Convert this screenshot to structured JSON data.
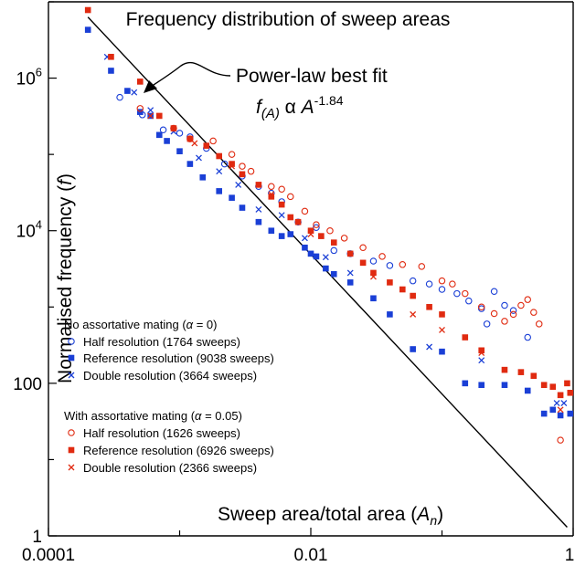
{
  "chart_data": {
    "type": "scatter",
    "title": "Frequency distribution of sweep areas",
    "xlabel_main": "Sweep area/total area (",
    "xlabel_var": "A",
    "xlabel_sub": "n",
    "xlabel_close": ")",
    "ylabel_main": "Normalised frequency (",
    "ylabel_var": "f",
    "ylabel_close": ")",
    "x_scale": "log",
    "y_scale": "log",
    "xlim": [
      0.0001,
      1
    ],
    "ylim": [
      1,
      10000000
    ],
    "x_ticks": [
      {
        "value": 0.0001,
        "label": "0.0001"
      },
      {
        "value": 0.01,
        "label": "0.01"
      },
      {
        "value": 1,
        "label": "1"
      }
    ],
    "y_ticks": [
      {
        "value": 1,
        "label": "1"
      },
      {
        "value": 100,
        "label": "100"
      },
      {
        "value": 10000,
        "label_base": "10",
        "label_exp": "4"
      },
      {
        "value": 1000000,
        "label_base": "10",
        "label_exp": "6"
      }
    ],
    "annotation": {
      "line1": "Power-law best fit",
      "formula_f": "f",
      "formula_sub": "(A)",
      "formula_alpha": " α ",
      "formula_A": "A",
      "formula_exp": "-1.84"
    },
    "fit_line": {
      "exponent": -1.84,
      "points": [
        [
          0.0002,
          6300000
        ],
        [
          0.9,
          1.3
        ]
      ]
    },
    "legend": {
      "group1_pre": "No assortative mating (",
      "group1_alpha": "α",
      "group1_post": " = 0)",
      "group2_pre": "With assortative mating (",
      "group2_alpha": "α",
      "group2_post": " = 0.05)"
    },
    "colors": {
      "no_mating": "#1a3fd6",
      "with_mating": "#e02a10",
      "fit": "#000000"
    },
    "series": [
      {
        "name": "Half resolution (1764 sweeps)",
        "group": "no_mating",
        "marker": "open-circle",
        "points": [
          [
            0.00035,
            560000
          ],
          [
            0.00052,
            330000
          ],
          [
            0.00075,
            210000
          ],
          [
            0.001,
            190000
          ],
          [
            0.0012,
            170000
          ],
          [
            0.0016,
            120000
          ],
          [
            0.0022,
            75000
          ],
          [
            0.003,
            52000
          ],
          [
            0.004,
            38000
          ],
          [
            0.005,
            31000
          ],
          [
            0.006,
            24000
          ],
          [
            0.008,
            13000
          ],
          [
            0.011,
            11000
          ],
          [
            0.015,
            5500
          ],
          [
            0.02,
            5000
          ],
          [
            0.03,
            4000
          ],
          [
            0.04,
            3500
          ],
          [
            0.06,
            2200
          ],
          [
            0.08,
            2000
          ],
          [
            0.1,
            1700
          ],
          [
            0.13,
            1500
          ],
          [
            0.16,
            1200
          ],
          [
            0.2,
            950
          ],
          [
            0.22,
            600
          ],
          [
            0.25,
            1600
          ],
          [
            0.3,
            1050
          ],
          [
            0.35,
            900
          ],
          [
            0.45,
            400
          ]
        ]
      },
      {
        "name": "Reference resolution (9038 sweeps)",
        "group": "no_mating",
        "marker": "filled-square",
        "points": [
          [
            0.0002,
            4300000
          ],
          [
            0.0003,
            1250000
          ],
          [
            0.0004,
            680000
          ],
          [
            0.0005,
            360000
          ],
          [
            0.0006,
            320000
          ],
          [
            0.0007,
            180000
          ],
          [
            0.0008,
            150000
          ],
          [
            0.001,
            110000
          ],
          [
            0.0012,
            75000
          ],
          [
            0.0015,
            50000
          ],
          [
            0.002,
            33000
          ],
          [
            0.0025,
            27000
          ],
          [
            0.003,
            20000
          ],
          [
            0.004,
            13000
          ],
          [
            0.005,
            10000
          ],
          [
            0.006,
            8500
          ],
          [
            0.007,
            9000
          ],
          [
            0.009,
            6000
          ],
          [
            0.01,
            5000
          ],
          [
            0.011,
            4600
          ],
          [
            0.013,
            3200
          ],
          [
            0.015,
            2700
          ],
          [
            0.02,
            2100
          ],
          [
            0.03,
            1300
          ],
          [
            0.04,
            800
          ],
          [
            0.06,
            280
          ],
          [
            0.1,
            260
          ],
          [
            0.15,
            100
          ],
          [
            0.2,
            95
          ],
          [
            0.3,
            95
          ],
          [
            0.45,
            80
          ],
          [
            0.6,
            40
          ],
          [
            0.7,
            45
          ],
          [
            0.8,
            38
          ],
          [
            0.95,
            40
          ]
        ]
      },
      {
        "name": "Double resolution (3664 sweeps)",
        "group": "no_mating",
        "marker": "cross",
        "points": [
          [
            0.00028,
            1900000
          ],
          [
            0.00045,
            650000
          ],
          [
            0.0006,
            380000
          ],
          [
            0.0009,
            200000
          ],
          [
            0.0014,
            90000
          ],
          [
            0.002,
            60000
          ],
          [
            0.0028,
            40000
          ],
          [
            0.004,
            19000
          ],
          [
            0.006,
            16000
          ],
          [
            0.009,
            8000
          ],
          [
            0.013,
            4500
          ],
          [
            0.02,
            2800
          ],
          [
            0.08,
            300
          ],
          [
            0.2,
            200
          ],
          [
            0.75,
            55
          ],
          [
            0.85,
            55
          ]
        ]
      },
      {
        "name": "Half resolution (1626 sweeps)",
        "group": "with_mating",
        "marker": "open-circle",
        "points": [
          [
            0.0005,
            400000
          ],
          [
            0.0009,
            220000
          ],
          [
            0.0012,
            160000
          ],
          [
            0.0018,
            150000
          ],
          [
            0.0025,
            100000
          ],
          [
            0.003,
            70000
          ],
          [
            0.0035,
            60000
          ],
          [
            0.005,
            38000
          ],
          [
            0.006,
            35000
          ],
          [
            0.007,
            28000
          ],
          [
            0.009,
            18000
          ],
          [
            0.011,
            12000
          ],
          [
            0.014,
            10000
          ],
          [
            0.018,
            8000
          ],
          [
            0.025,
            6000
          ],
          [
            0.035,
            4600
          ],
          [
            0.05,
            3600
          ],
          [
            0.07,
            3400
          ],
          [
            0.1,
            2200
          ],
          [
            0.12,
            2000
          ],
          [
            0.15,
            1500
          ],
          [
            0.2,
            1000
          ],
          [
            0.25,
            820
          ],
          [
            0.3,
            650
          ],
          [
            0.35,
            800
          ],
          [
            0.4,
            1050
          ],
          [
            0.45,
            1250
          ],
          [
            0.5,
            850
          ],
          [
            0.55,
            600
          ],
          [
            0.8,
            18
          ]
        ]
      },
      {
        "name": "Reference resolution (6926 sweeps)",
        "group": "with_mating",
        "marker": "filled-square",
        "points": [
          [
            0.0002,
            7800000
          ],
          [
            0.0003,
            1900000
          ],
          [
            0.0005,
            900000
          ],
          [
            0.0007,
            320000
          ],
          [
            0.0009,
            220000
          ],
          [
            0.0012,
            160000
          ],
          [
            0.0016,
            130000
          ],
          [
            0.002,
            95000
          ],
          [
            0.0025,
            75000
          ],
          [
            0.003,
            55000
          ],
          [
            0.004,
            40000
          ],
          [
            0.005,
            28000
          ],
          [
            0.006,
            22000
          ],
          [
            0.007,
            15000
          ],
          [
            0.008,
            13000
          ],
          [
            0.01,
            10000
          ],
          [
            0.012,
            8500
          ],
          [
            0.015,
            7000
          ],
          [
            0.02,
            5000
          ],
          [
            0.025,
            3800
          ],
          [
            0.03,
            2800
          ],
          [
            0.04,
            2100
          ],
          [
            0.05,
            1700
          ],
          [
            0.06,
            1400
          ],
          [
            0.08,
            1000
          ],
          [
            0.1,
            800
          ],
          [
            0.15,
            400
          ],
          [
            0.2,
            270
          ],
          [
            0.3,
            150
          ],
          [
            0.4,
            140
          ],
          [
            0.5,
            125
          ],
          [
            0.6,
            95
          ],
          [
            0.7,
            90
          ],
          [
            0.8,
            70
          ],
          [
            0.9,
            100
          ],
          [
            0.95,
            75
          ]
        ]
      },
      {
        "name": "Double resolution (2366 sweeps)",
        "group": "with_mating",
        "marker": "cross",
        "points": [
          [
            0.0006,
            320000
          ],
          [
            0.0013,
            140000
          ],
          [
            0.0025,
            70000
          ],
          [
            0.005,
            30000
          ],
          [
            0.01,
            9000
          ],
          [
            0.03,
            2500
          ],
          [
            0.06,
            800
          ],
          [
            0.1,
            500
          ],
          [
            0.2,
            250
          ],
          [
            0.8,
            45
          ]
        ]
      }
    ]
  }
}
